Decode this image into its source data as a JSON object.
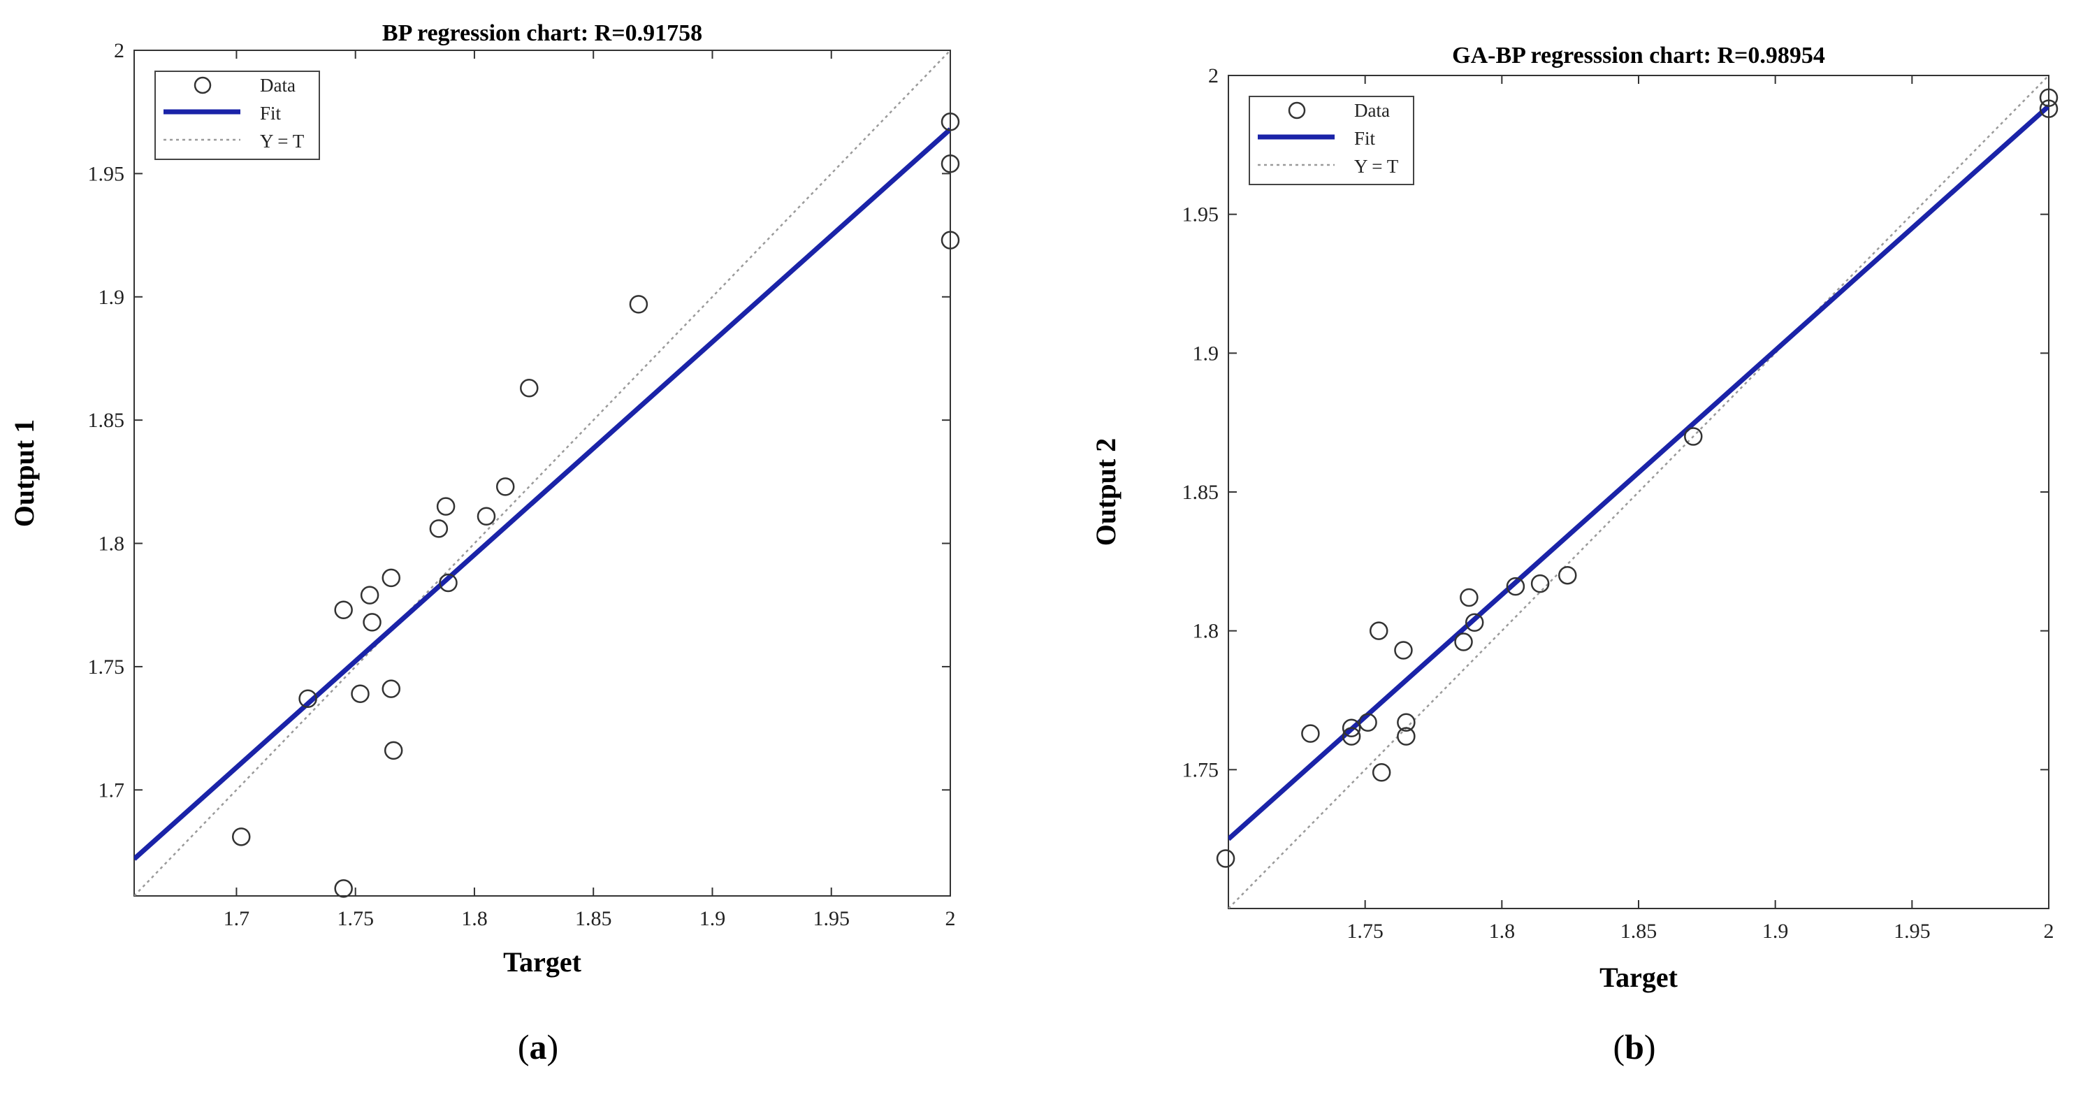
{
  "chart_data": [
    {
      "type": "scatter",
      "title": "BP regression chart: R=0.91758",
      "xlabel": "Target",
      "ylabel": "Output 1",
      "caption_letter": "a",
      "xlim": [
        1.657,
        2.0
      ],
      "ylim": [
        1.657,
        2.0
      ],
      "xticks": [
        1.7,
        1.75,
        1.8,
        1.85,
        1.9,
        1.95,
        2
      ],
      "yticks": [
        1.7,
        1.75,
        1.8,
        1.85,
        1.9,
        1.95,
        2
      ],
      "tick_labels_x": [
        "1.7",
        "1.75",
        "1.8",
        "1.85",
        "1.9",
        "1.95",
        "2"
      ],
      "tick_labels_y": [
        "1.7",
        "1.75",
        "1.8",
        "1.85",
        "1.9",
        "1.95",
        "2"
      ],
      "grid": false,
      "legend": {
        "placement": "top-left",
        "entries": [
          "Data",
          "Fit",
          "Y = T"
        ]
      },
      "colors": {
        "fit": "#1a23a8",
        "data": "#333333",
        "identity": "#9a9a9a"
      },
      "series": [
        {
          "name": "Data",
          "x": [
            1.702,
            1.73,
            1.745,
            1.745,
            1.752,
            1.756,
            1.757,
            1.765,
            1.765,
            1.766,
            1.785,
            1.788,
            1.789,
            1.805,
            1.813,
            1.823,
            1.869,
            2.0,
            2.0,
            2.0
          ],
          "y": [
            1.681,
            1.737,
            1.66,
            1.773,
            1.739,
            1.779,
            1.768,
            1.786,
            1.741,
            1.716,
            1.806,
            1.815,
            1.784,
            1.811,
            1.823,
            1.863,
            1.897,
            1.971,
            1.954,
            1.923
          ]
        },
        {
          "name": "Fit",
          "x": [
            1.657,
            2.0
          ],
          "y": [
            1.672,
            1.968
          ]
        },
        {
          "name": "Y = T",
          "x": [
            1.657,
            2.0
          ],
          "y": [
            1.657,
            2.0
          ]
        }
      ]
    },
    {
      "type": "scatter",
      "title": "GA-BP regresssion chart: R=0.98954",
      "xlabel": "Target",
      "ylabel": "Output 2",
      "caption_letter": "b",
      "xlim": [
        1.7,
        2.0
      ],
      "ylim": [
        1.7,
        2.0
      ],
      "xticks": [
        1.75,
        1.8,
        1.85,
        1.9,
        1.95,
        2
      ],
      "yticks": [
        1.75,
        1.8,
        1.85,
        1.9,
        1.95,
        2
      ],
      "tick_labels_x": [
        "1.75",
        "1.8",
        "1.85",
        "1.9",
        "1.95",
        "2"
      ],
      "tick_labels_y": [
        "1.75",
        "1.8",
        "1.85",
        "1.9",
        "1.95",
        "2"
      ],
      "grid": false,
      "legend": {
        "placement": "top-left",
        "entries": [
          "Data",
          "Fit",
          "Y = T"
        ]
      },
      "colors": {
        "fit": "#1a23a8",
        "data": "#333333",
        "identity": "#9a9a9a"
      },
      "series": [
        {
          "name": "Data",
          "x": [
            1.699,
            1.73,
            1.745,
            1.745,
            1.751,
            1.755,
            1.756,
            1.764,
            1.765,
            1.765,
            1.786,
            1.788,
            1.79,
            1.805,
            1.814,
            1.824,
            1.87,
            2.0,
            2.0
          ],
          "y": [
            1.718,
            1.763,
            1.765,
            1.762,
            1.767,
            1.8,
            1.749,
            1.793,
            1.767,
            1.762,
            1.796,
            1.812,
            1.803,
            1.816,
            1.817,
            1.82,
            1.87,
            1.992,
            1.988
          ]
        },
        {
          "name": "Fit",
          "x": [
            1.7,
            2.0
          ],
          "y": [
            1.725,
            1.989
          ]
        },
        {
          "name": "Y = T",
          "x": [
            1.7,
            2.0
          ],
          "y": [
            1.7,
            2.0
          ]
        }
      ]
    }
  ]
}
